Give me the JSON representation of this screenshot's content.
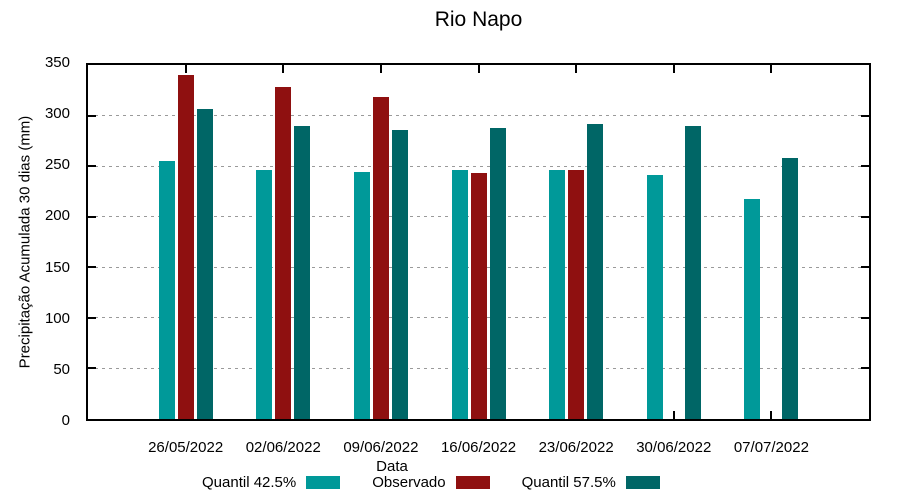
{
  "chart_data": {
    "type": "bar",
    "title": "Rio Napo",
    "xlabel": "Data",
    "ylabel": "Precipitação Acumulada 30 dias (mm)",
    "categories": [
      "26/05/2022",
      "02/06/2022",
      "09/06/2022",
      "16/06/2022",
      "23/06/2022",
      "30/06/2022",
      "07/07/2022"
    ],
    "series": [
      {
        "name": "Quantil 42.5%",
        "color": "#009999",
        "values": [
          255,
          246,
          244,
          246,
          246,
          241,
          218
        ]
      },
      {
        "name": "Observado",
        "color": "#8F1010",
        "values": [
          340,
          328,
          318,
          243,
          246,
          null,
          null
        ]
      },
      {
        "name": "Quantil 57.5%",
        "color": "#006666",
        "values": [
          307,
          290,
          286,
          288,
          292,
          290,
          258
        ]
      }
    ],
    "ylim": [
      0,
      350
    ],
    "yticks": [
      0,
      50,
      100,
      150,
      200,
      250,
      300,
      350
    ],
    "grid": true,
    "legend_position": "bottom-center"
  },
  "styles": {
    "background": "#ffffff",
    "axis_color": "#000000",
    "grid_color": "#9a9a9a"
  }
}
